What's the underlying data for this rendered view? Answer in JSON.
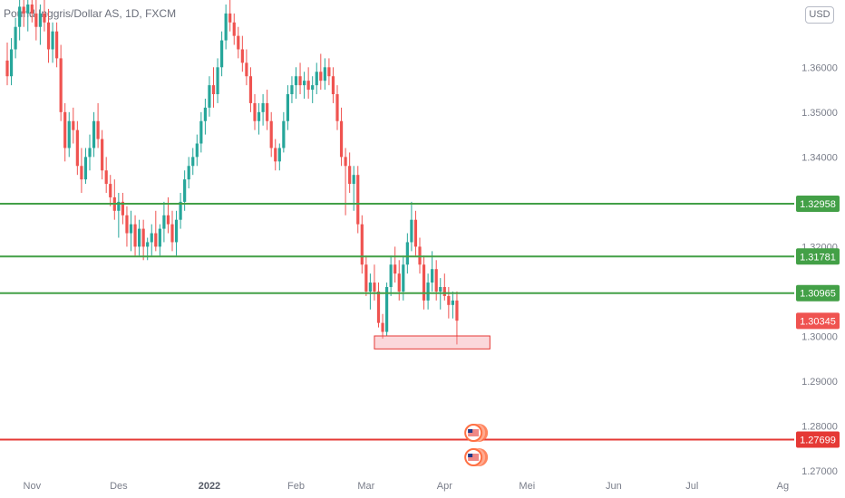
{
  "header": {
    "title": "Pound Inggris/Dollar AS, 1D, FXCM",
    "currency": "USD"
  },
  "chart_data": {
    "type": "candlestick",
    "title": "Pound Inggris/Dollar AS, 1D, FXCM",
    "ylim": [
      1.268,
      1.375
    ],
    "y_ticks": [
      "1.27000",
      "1.28000",
      "1.29000",
      "1.30000",
      "1.32000",
      "1.34000",
      "1.35000",
      "1.36000"
    ],
    "x_labels": [
      {
        "label": "Nov",
        "index": 6,
        "bold": false
      },
      {
        "label": "Des",
        "index": 27,
        "bold": false
      },
      {
        "label": "2022",
        "index": 49,
        "bold": true
      },
      {
        "label": "Feb",
        "index": 70,
        "bold": false
      },
      {
        "label": "Mar",
        "index": 87,
        "bold": false
      },
      {
        "label": "Apr",
        "index": 106,
        "bold": false
      },
      {
        "label": "Mei",
        "index": 126,
        "bold": false
      },
      {
        "label": "Jun",
        "index": 147,
        "bold": false
      },
      {
        "label": "Jul",
        "index": 166,
        "bold": false
      },
      {
        "label": "Ag",
        "index": 188,
        "bold": false
      }
    ],
    "horizontal_levels": [
      {
        "value": 1.32958,
        "label": "1.32958",
        "color": "#43a047"
      },
      {
        "value": 1.31781,
        "label": "1.31781",
        "color": "#43a047"
      },
      {
        "value": 1.30965,
        "label": "1.30965",
        "color": "#43a047"
      },
      {
        "value": 1.27699,
        "label": "1.27699",
        "color": "#e53935"
      }
    ],
    "last_price": {
      "value": 1.30345,
      "label": "1.30345",
      "color": "#ef5350"
    },
    "support_zone": {
      "start_index": 89,
      "end_index": 117,
      "top": 1.3001,
      "bottom": 1.2972
    },
    "event_markers_index": 113,
    "candles": [
      [
        1.3615,
        1.3655,
        1.356,
        1.358
      ],
      [
        1.358,
        1.3665,
        1.356,
        1.364
      ],
      [
        1.364,
        1.371,
        1.362,
        1.369
      ],
      [
        1.369,
        1.375,
        1.366,
        1.3735
      ],
      [
        1.3735,
        1.378,
        1.369,
        1.372
      ],
      [
        1.372,
        1.376,
        1.368,
        1.374
      ],
      [
        1.374,
        1.379,
        1.37,
        1.372
      ],
      [
        1.372,
        1.376,
        1.366,
        1.369
      ],
      [
        1.369,
        1.374,
        1.365,
        1.372
      ],
      [
        1.372,
        1.376,
        1.368,
        1.37
      ],
      [
        1.37,
        1.373,
        1.361,
        1.364
      ],
      [
        1.364,
        1.37,
        1.361,
        1.368
      ],
      [
        1.368,
        1.37,
        1.36,
        1.362
      ],
      [
        1.362,
        1.365,
        1.348,
        1.35
      ],
      [
        1.35,
        1.352,
        1.339,
        1.342
      ],
      [
        1.342,
        1.35,
        1.34,
        1.348
      ],
      [
        1.348,
        1.351,
        1.343,
        1.346
      ],
      [
        1.346,
        1.348,
        1.336,
        1.338
      ],
      [
        1.338,
        1.342,
        1.332,
        1.335
      ],
      [
        1.335,
        1.342,
        1.334,
        1.34
      ],
      [
        1.34,
        1.345,
        1.337,
        1.342
      ],
      [
        1.342,
        1.35,
        1.34,
        1.348
      ],
      [
        1.348,
        1.352,
        1.342,
        1.344
      ],
      [
        1.344,
        1.346,
        1.335,
        1.337
      ],
      [
        1.337,
        1.34,
        1.332,
        1.334
      ],
      [
        1.334,
        1.336,
        1.329,
        1.331
      ],
      [
        1.331,
        1.335,
        1.326,
        1.328
      ],
      [
        1.328,
        1.332,
        1.322,
        1.33
      ],
      [
        1.33,
        1.332,
        1.325,
        1.327
      ],
      [
        1.327,
        1.329,
        1.32,
        1.323
      ],
      [
        1.323,
        1.328,
        1.319,
        1.325
      ],
      [
        1.325,
        1.327,
        1.318,
        1.32
      ],
      [
        1.32,
        1.326,
        1.318,
        1.324
      ],
      [
        1.324,
        1.326,
        1.317,
        1.32
      ],
      [
        1.32,
        1.322,
        1.317,
        1.321
      ],
      [
        1.321,
        1.325,
        1.318,
        1.323
      ],
      [
        1.323,
        1.328,
        1.319,
        1.32
      ],
      [
        1.32,
        1.325,
        1.318,
        1.324
      ],
      [
        1.324,
        1.33,
        1.321,
        1.327
      ],
      [
        1.327,
        1.331,
        1.323,
        1.325
      ],
      [
        1.325,
        1.328,
        1.319,
        1.321
      ],
      [
        1.321,
        1.328,
        1.318,
        1.326
      ],
      [
        1.326,
        1.332,
        1.324,
        1.33
      ],
      [
        1.33,
        1.337,
        1.328,
        1.335
      ],
      [
        1.335,
        1.34,
        1.333,
        1.338
      ],
      [
        1.338,
        1.342,
        1.336,
        1.34
      ],
      [
        1.34,
        1.345,
        1.338,
        1.343
      ],
      [
        1.343,
        1.35,
        1.341,
        1.348
      ],
      [
        1.348,
        1.353,
        1.345,
        1.351
      ],
      [
        1.351,
        1.358,
        1.349,
        1.356
      ],
      [
        1.356,
        1.36,
        1.351,
        1.354
      ],
      [
        1.354,
        1.362,
        1.352,
        1.36
      ],
      [
        1.36,
        1.368,
        1.358,
        1.366
      ],
      [
        1.366,
        1.374,
        1.364,
        1.372
      ],
      [
        1.372,
        1.376,
        1.368,
        1.37
      ],
      [
        1.37,
        1.372,
        1.365,
        1.367
      ],
      [
        1.367,
        1.369,
        1.362,
        1.364
      ],
      [
        1.364,
        1.367,
        1.359,
        1.361
      ],
      [
        1.361,
        1.364,
        1.356,
        1.358
      ],
      [
        1.358,
        1.36,
        1.35,
        1.352
      ],
      [
        1.352,
        1.354,
        1.346,
        1.348
      ],
      [
        1.348,
        1.352,
        1.345,
        1.35
      ],
      [
        1.35,
        1.354,
        1.347,
        1.352
      ],
      [
        1.352,
        1.355,
        1.346,
        1.348
      ],
      [
        1.348,
        1.35,
        1.34,
        1.342
      ],
      [
        1.342,
        1.344,
        1.337,
        1.339
      ],
      [
        1.339,
        1.343,
        1.337,
        1.342
      ],
      [
        1.342,
        1.35,
        1.341,
        1.348
      ],
      [
        1.348,
        1.356,
        1.346,
        1.354
      ],
      [
        1.354,
        1.358,
        1.352,
        1.356
      ],
      [
        1.356,
        1.36,
        1.353,
        1.358
      ],
      [
        1.358,
        1.361,
        1.354,
        1.356
      ],
      [
        1.356,
        1.359,
        1.353,
        1.357
      ],
      [
        1.357,
        1.36,
        1.353,
        1.355
      ],
      [
        1.355,
        1.358,
        1.352,
        1.356
      ],
      [
        1.356,
        1.361,
        1.354,
        1.359
      ],
      [
        1.359,
        1.363,
        1.355,
        1.357
      ],
      [
        1.357,
        1.362,
        1.355,
        1.36
      ],
      [
        1.36,
        1.362,
        1.356,
        1.358
      ],
      [
        1.358,
        1.36,
        1.352,
        1.354
      ],
      [
        1.354,
        1.356,
        1.346,
        1.348
      ],
      [
        1.348,
        1.351,
        1.338,
        1.34
      ],
      [
        1.34,
        1.342,
        1.327,
        1.338
      ],
      [
        1.338,
        1.341,
        1.332,
        1.334
      ],
      [
        1.334,
        1.338,
        1.328,
        1.336
      ],
      [
        1.336,
        1.338,
        1.323,
        1.325
      ],
      [
        1.325,
        1.327,
        1.314,
        1.316
      ],
      [
        1.316,
        1.318,
        1.309,
        1.31
      ],
      [
        1.31,
        1.314,
        1.306,
        1.312
      ],
      [
        1.312,
        1.316,
        1.308,
        1.31
      ],
      [
        1.31,
        1.312,
        1.302,
        1.303
      ],
      [
        1.303,
        1.305,
        1.2995,
        1.301
      ],
      [
        1.301,
        1.312,
        1.3,
        1.311
      ],
      [
        1.311,
        1.318,
        1.309,
        1.316
      ],
      [
        1.316,
        1.32,
        1.312,
        1.314
      ],
      [
        1.314,
        1.317,
        1.308,
        1.31
      ],
      [
        1.31,
        1.318,
        1.308,
        1.316
      ],
      [
        1.316,
        1.323,
        1.314,
        1.321
      ],
      [
        1.321,
        1.33,
        1.319,
        1.326
      ],
      [
        1.326,
        1.328,
        1.318,
        1.32
      ],
      [
        1.32,
        1.322,
        1.314,
        1.316
      ],
      [
        1.316,
        1.318,
        1.306,
        1.308
      ],
      [
        1.308,
        1.314,
        1.306,
        1.312
      ],
      [
        1.312,
        1.319,
        1.31,
        1.315
      ],
      [
        1.315,
        1.317,
        1.308,
        1.31
      ],
      [
        1.31,
        1.313,
        1.306,
        1.311
      ],
      [
        1.311,
        1.314,
        1.308,
        1.309
      ],
      [
        1.309,
        1.311,
        1.304,
        1.307
      ],
      [
        1.307,
        1.31,
        1.304,
        1.308
      ],
      [
        1.308,
        1.31,
        1.2982,
        1.3035
      ]
    ]
  }
}
